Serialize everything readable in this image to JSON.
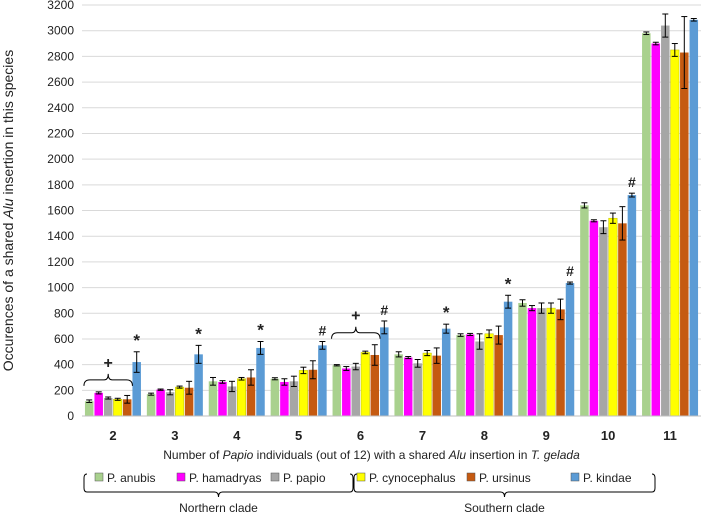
{
  "chart_data": {
    "type": "bar",
    "title": "",
    "ylabel_parts": [
      "Occurences of a shared ",
      "Alu",
      " insertion in this species"
    ],
    "xlabel_parts": [
      "Number of ",
      "Papio",
      " individuals (out of 12) with a shared ",
      "Alu",
      " insertion in ",
      "T. gelada"
    ],
    "ylim": [
      0,
      3200
    ],
    "ytick_step": 200,
    "categories": [
      "2",
      "3",
      "4",
      "5",
      "6",
      "7",
      "8",
      "9",
      "10",
      "11"
    ],
    "series": [
      {
        "name": "P. anubis",
        "color": "#a9d18e",
        "values": [
          115,
          170,
          270,
          290,
          395,
          480,
          630,
          880,
          1640,
          2980
        ],
        "errors": [
          10,
          8,
          30,
          8,
          5,
          20,
          10,
          25,
          20,
          10
        ]
      },
      {
        "name": "P. hamadryas",
        "color": "#ff00ff",
        "values": [
          180,
          205,
          265,
          265,
          370,
          455,
          635,
          840,
          1520,
          2900
        ],
        "errors": [
          8,
          5,
          10,
          25,
          15,
          8,
          8,
          20,
          8,
          10
        ]
      },
      {
        "name": "P. papio",
        "color": "#a6a6a6",
        "values": [
          140,
          185,
          230,
          270,
          385,
          410,
          580,
          840,
          1470,
          3040
        ],
        "errors": [
          8,
          20,
          40,
          40,
          25,
          30,
          60,
          40,
          50,
          90
        ]
      },
      {
        "name": "P. cynocephalus",
        "color": "#ffff00",
        "values": [
          130,
          225,
          290,
          355,
          495,
          490,
          640,
          840,
          1540,
          2850
        ],
        "errors": [
          8,
          8,
          10,
          25,
          10,
          20,
          30,
          40,
          40,
          50
        ]
      },
      {
        "name": "P. ursinus",
        "color": "#c55a11",
        "values": [
          130,
          220,
          300,
          360,
          475,
          470,
          630,
          830,
          1500,
          2830
        ],
        "errors": [
          30,
          50,
          60,
          70,
          80,
          60,
          70,
          80,
          130,
          280
        ]
      },
      {
        "name": "P. kindae",
        "color": "#5b9bd5",
        "values": [
          420,
          480,
          530,
          550,
          690,
          680,
          890,
          1035,
          1720,
          3085
        ],
        "errors": [
          80,
          70,
          50,
          30,
          50,
          35,
          50,
          8,
          15,
          10
        ]
      }
    ],
    "annotations": [
      {
        "category": "2",
        "text": "*"
      },
      {
        "category": "3",
        "text": "*"
      },
      {
        "category": "4",
        "text": "*"
      },
      {
        "category": "5",
        "text": "#"
      },
      {
        "category": "6",
        "text": "#"
      },
      {
        "category": "7",
        "text": "*"
      },
      {
        "category": "8",
        "text": "*"
      },
      {
        "category": "9",
        "text": "#"
      },
      {
        "category": "10",
        "text": "#"
      }
    ],
    "group_marks": [
      {
        "category": "2",
        "text": "+"
      },
      {
        "category": "6",
        "text": "+"
      }
    ],
    "clades": [
      {
        "label": "Northern clade"
      },
      {
        "label": "Southern clade"
      }
    ],
    "legend_position": "bottom"
  }
}
